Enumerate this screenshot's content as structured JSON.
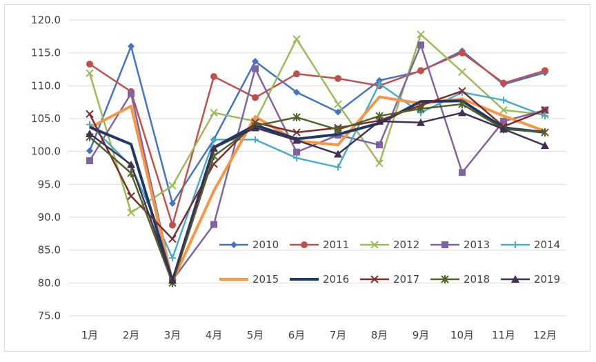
{
  "chart_data": {
    "type": "line",
    "title": "",
    "xlabel": "",
    "ylabel": "",
    "categories": [
      "1月",
      "2月",
      "3月",
      "4月",
      "5月",
      "6月",
      "7月",
      "8月",
      "9月",
      "10月",
      "11月",
      "12月"
    ],
    "ylim": [
      75.0,
      120.0
    ],
    "yticks": [
      "75.0",
      "80.0",
      "85.0",
      "90.0",
      "95.0",
      "100.0",
      "105.0",
      "110.0",
      "115.0",
      "120.0"
    ],
    "grid": "horizontal",
    "legend_position": "inside-bottom-right",
    "series": [
      {
        "name": "2010",
        "color": "#4472c4",
        "marker": "diamond",
        "values": [
          100.1,
          116.0,
          92.1,
          101.8,
          113.7,
          109.0,
          106.0,
          110.8,
          112.2,
          115.3,
          110.2,
          112.0
        ]
      },
      {
        "name": "2011",
        "color": "#c0504d",
        "marker": "circle",
        "values": [
          113.3,
          109.1,
          88.8,
          111.4,
          108.2,
          111.8,
          111.1,
          110.0,
          112.3,
          115.0,
          110.4,
          112.3
        ]
      },
      {
        "name": "2012",
        "color": "#9bbb59",
        "marker": "x",
        "values": [
          111.9,
          90.7,
          94.8,
          105.9,
          104.6,
          117.1,
          107.2,
          98.2,
          117.8,
          112.1,
          106.3,
          105.6
        ]
      },
      {
        "name": "2013",
        "color": "#8064a2",
        "marker": "square",
        "values": [
          98.6,
          108.8,
          80.4,
          88.9,
          112.6,
          99.9,
          102.5,
          101.0,
          116.2,
          96.8,
          104.6,
          106.3
        ]
      },
      {
        "name": "2014",
        "color": "#4bacc6",
        "marker": "plus",
        "values": [
          104.1,
          97.8,
          83.8,
          101.8,
          101.8,
          99.0,
          97.6,
          110.3,
          105.9,
          109.0,
          107.8,
          105.4
        ]
      },
      {
        "name": "2015",
        "color": "#f79646",
        "marker": "none",
        "values": [
          103.6,
          106.9,
          80.2,
          94.0,
          105.3,
          101.6,
          101.0,
          108.3,
          107.3,
          108.0,
          105.4,
          103.1
        ]
      },
      {
        "name": "2016",
        "color": "#1f3864",
        "marker": "none",
        "values": [
          103.7,
          101.1,
          80.3,
          100.6,
          104.0,
          101.9,
          102.6,
          104.3,
          107.6,
          107.7,
          103.6,
          102.9
        ]
      },
      {
        "name": "2017",
        "color": "#7b2c2c",
        "marker": "x",
        "values": [
          105.7,
          93.2,
          86.7,
          98.1,
          104.4,
          102.9,
          103.6,
          104.7,
          107.0,
          109.2,
          103.8,
          106.3
        ]
      },
      {
        "name": "2018",
        "color": "#4f6228",
        "marker": "asterisk",
        "values": [
          102.2,
          96.7,
          80.0,
          99.3,
          103.9,
          105.2,
          103.3,
          105.4,
          106.5,
          107.2,
          103.4,
          102.9
        ]
      },
      {
        "name": "2019",
        "color": "#403151",
        "marker": "triangle",
        "values": [
          102.7,
          98.0,
          80.4,
          100.5,
          103.6,
          101.7,
          99.6,
          104.6,
          104.4,
          105.9,
          103.4,
          100.9
        ]
      }
    ]
  }
}
